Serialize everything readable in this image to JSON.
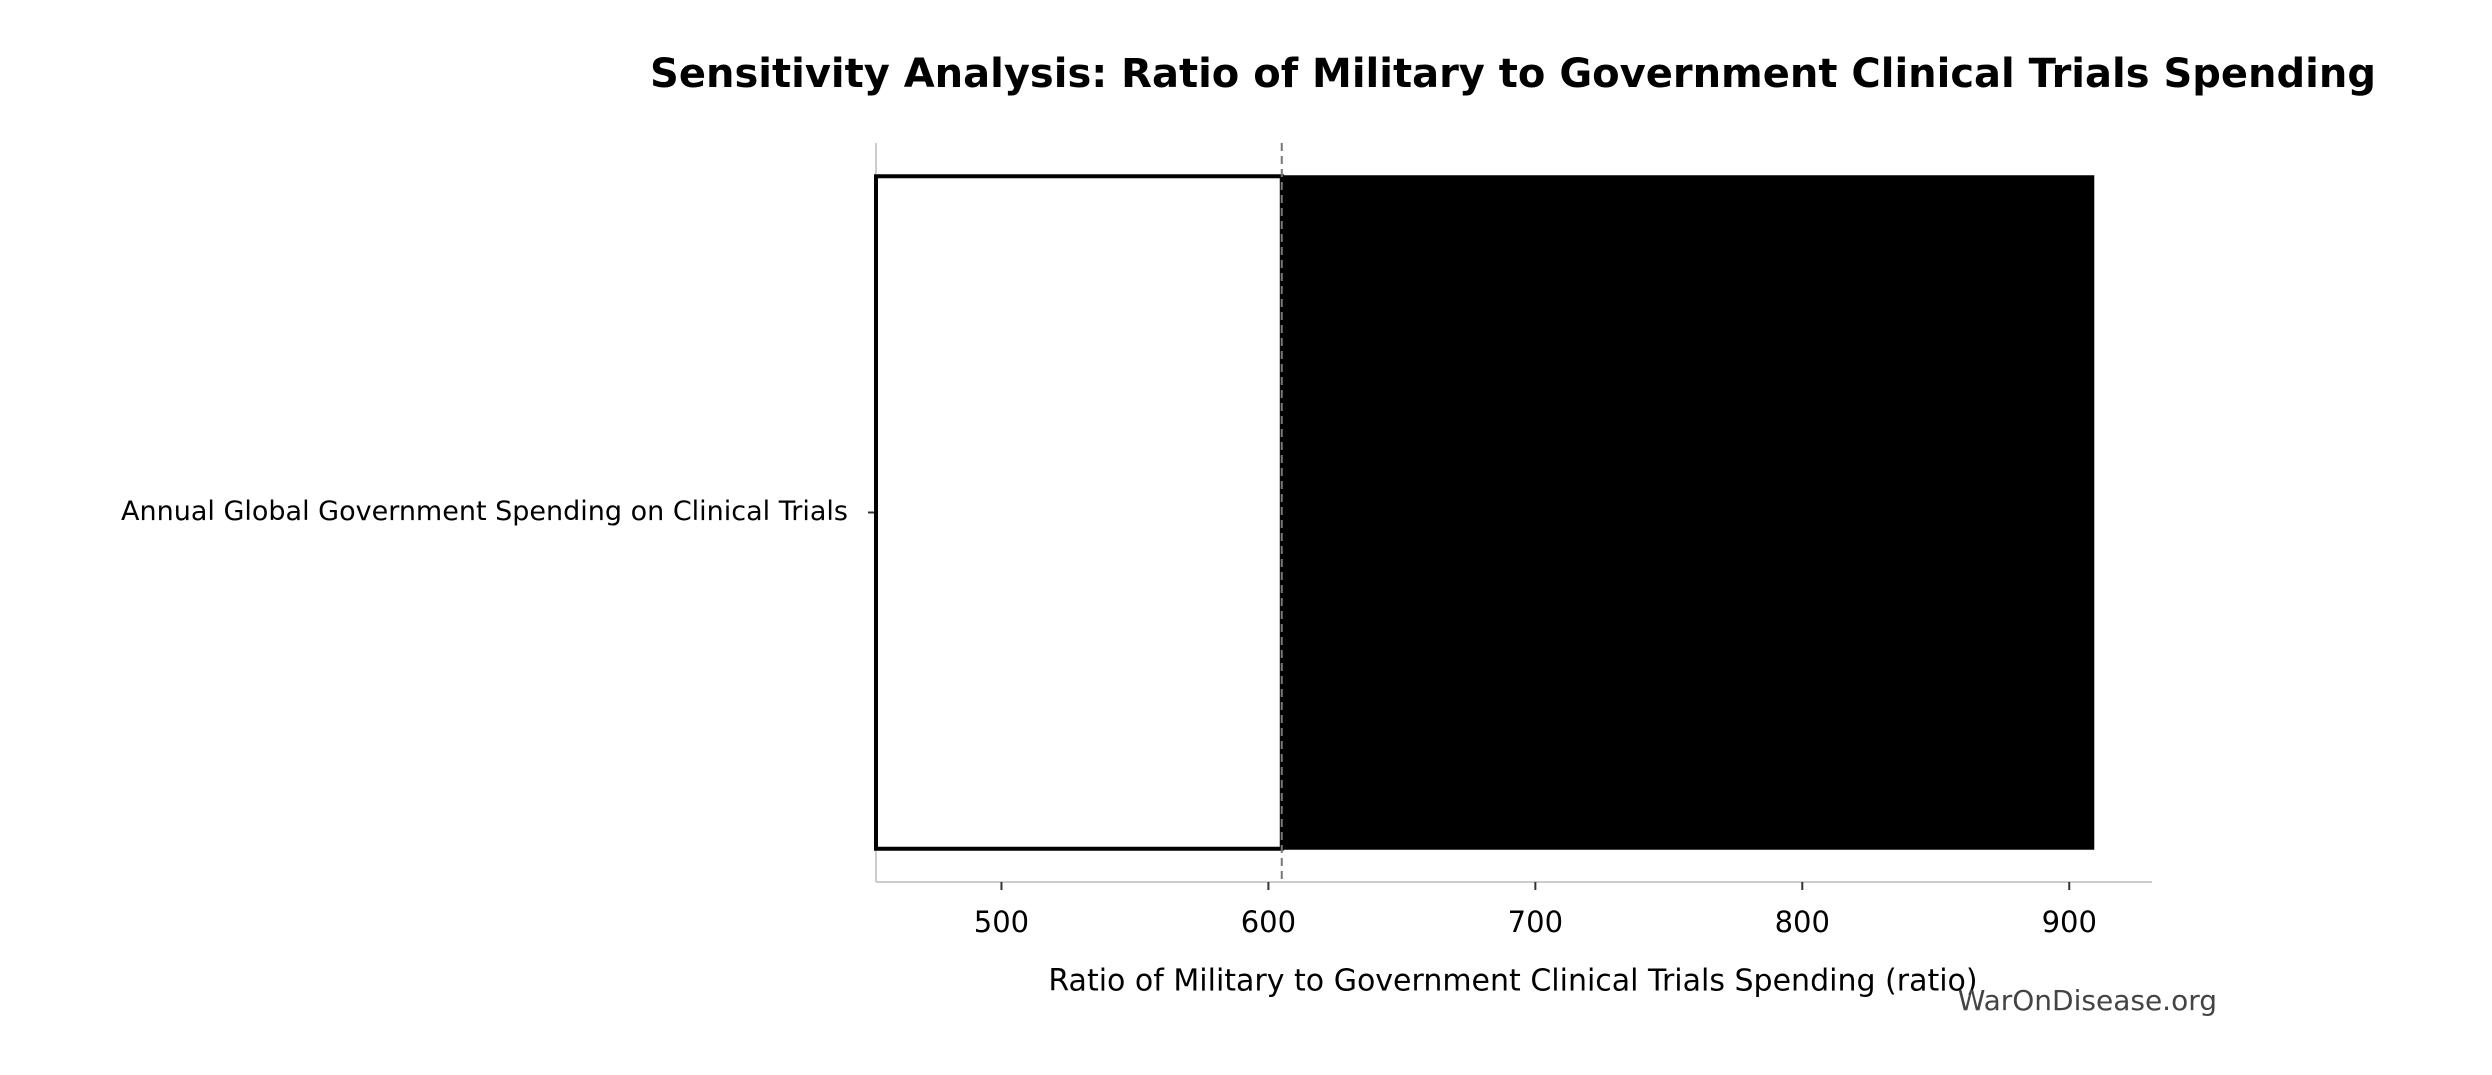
{
  "chart_data": {
    "type": "tornado",
    "title": "Sensitivity Analysis: Ratio of Military to Government Clinical Trials Spending",
    "xlabel": "Ratio of Military to Government Clinical Trials Spending (ratio)",
    "categories": [
      "Annual Global Government Spending on Clinical Trials"
    ],
    "baseline": 605,
    "low": [
      453
    ],
    "high": [
      909
    ],
    "low_color": "#ffffff",
    "high_color": "#000000",
    "xlim": [
      453,
      931
    ],
    "xticks": [
      500,
      600,
      700,
      800,
      900
    ],
    "watermark": "WarOnDisease.org"
  }
}
